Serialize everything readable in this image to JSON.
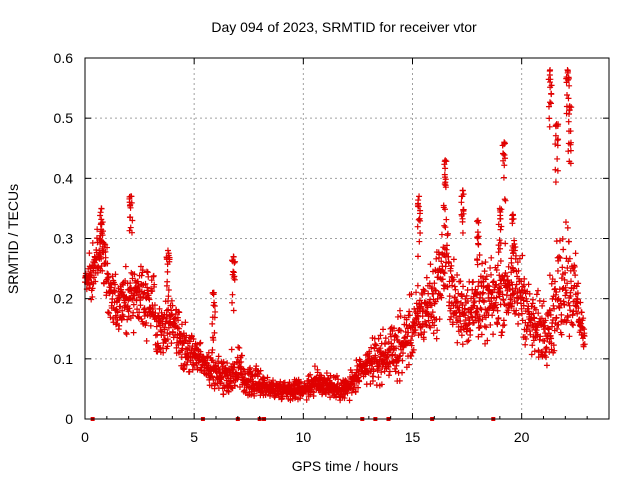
{
  "chart_data": {
    "type": "scatter",
    "title": "Day 094 of 2023, SRMTID for receiver vtor",
    "xlabel": "GPS time / hours",
    "ylabel": "SRMTID / TECUs",
    "xlim": [
      0,
      24
    ],
    "ylim": [
      0,
      0.6
    ],
    "xticks": [
      0,
      5,
      10,
      15,
      20
    ],
    "xtick_labels": [
      "0",
      "5",
      "10",
      "15",
      "20"
    ],
    "yticks": [
      0,
      0.1,
      0.2,
      0.3,
      0.4,
      0.5,
      0.6
    ],
    "ytick_labels": [
      "0",
      "0.1",
      "0.2",
      "0.3",
      "0.4",
      "0.5",
      "0.6"
    ],
    "grid": true,
    "series": [
      {
        "name": "SRMTID",
        "marker": "plus",
        "color": "#e00000",
        "envelope": {
          "x": [
            0.0,
            0.3,
            0.5,
            0.8,
            1.0,
            1.2,
            1.5,
            2.0,
            2.5,
            3.0,
            3.5,
            4.0,
            4.5,
            5.0,
            5.5,
            6.0,
            6.5,
            7.0,
            7.5,
            8.0,
            8.5,
            9.0,
            9.5,
            10.0,
            10.5,
            11.0,
            11.5,
            12.0,
            12.5,
            13.0,
            13.5,
            14.0,
            14.5,
            15.0,
            15.5,
            16.0,
            16.5,
            17.0,
            17.5,
            18.0,
            18.5,
            19.0,
            19.5,
            20.0,
            20.5,
            21.0,
            21.5,
            22.0,
            22.5,
            22.9
          ],
          "median": [
            0.23,
            0.24,
            0.26,
            0.28,
            0.23,
            0.2,
            0.19,
            0.2,
            0.21,
            0.19,
            0.15,
            0.17,
            0.12,
            0.11,
            0.09,
            0.08,
            0.07,
            0.08,
            0.06,
            0.06,
            0.05,
            0.05,
            0.05,
            0.05,
            0.06,
            0.06,
            0.05,
            0.05,
            0.07,
            0.09,
            0.1,
            0.11,
            0.12,
            0.15,
            0.18,
            0.2,
            0.27,
            0.18,
            0.18,
            0.19,
            0.19,
            0.21,
            0.22,
            0.21,
            0.15,
            0.15,
            0.18,
            0.25,
            0.2,
            0.13
          ],
          "spread": [
            0.03,
            0.05,
            0.06,
            0.08,
            0.07,
            0.06,
            0.06,
            0.07,
            0.07,
            0.07,
            0.06,
            0.06,
            0.05,
            0.04,
            0.04,
            0.04,
            0.04,
            0.05,
            0.03,
            0.03,
            0.02,
            0.02,
            0.02,
            0.02,
            0.03,
            0.03,
            0.02,
            0.03,
            0.03,
            0.04,
            0.05,
            0.05,
            0.06,
            0.07,
            0.07,
            0.08,
            0.1,
            0.07,
            0.07,
            0.07,
            0.08,
            0.08,
            0.09,
            0.08,
            0.07,
            0.07,
            0.09,
            0.15,
            0.07,
            0.03
          ]
        },
        "peaks": [
          {
            "x": 0.75,
            "y": 0.35
          },
          {
            "x": 2.1,
            "y": 0.37
          },
          {
            "x": 3.8,
            "y": 0.28
          },
          {
            "x": 5.9,
            "y": 0.21
          },
          {
            "x": 6.8,
            "y": 0.27
          },
          {
            "x": 15.3,
            "y": 0.37
          },
          {
            "x": 16.5,
            "y": 0.43
          },
          {
            "x": 17.3,
            "y": 0.38
          },
          {
            "x": 18.0,
            "y": 0.33
          },
          {
            "x": 19.0,
            "y": 0.35
          },
          {
            "x": 19.2,
            "y": 0.46
          },
          {
            "x": 19.6,
            "y": 0.34
          },
          {
            "x": 21.3,
            "y": 0.58
          },
          {
            "x": 21.6,
            "y": 0.49
          },
          {
            "x": 22.1,
            "y": 0.58
          },
          {
            "x": 22.2,
            "y": 0.52
          }
        ],
        "baseline_markers_x": [
          0.35,
          5.4,
          7.0,
          8.0,
          8.2,
          12.7,
          13.3,
          13.9,
          15.9,
          18.7
        ]
      }
    ]
  }
}
